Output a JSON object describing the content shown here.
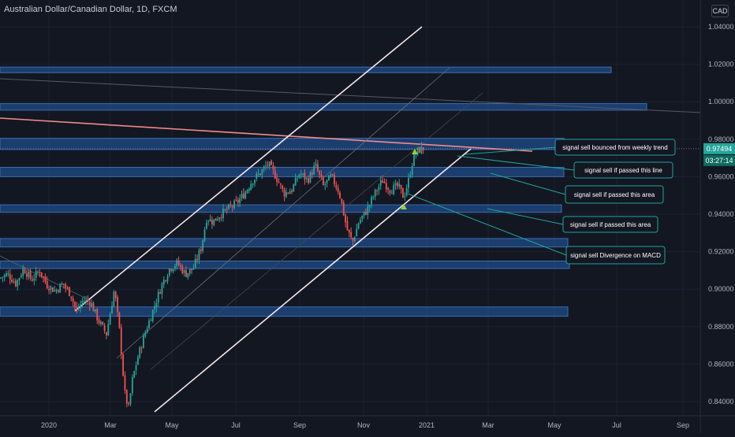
{
  "header": {
    "symbol_title": "Australian Dollar/Canadian Dollar, 1D, FXCM",
    "currency": "CAD"
  },
  "price_scale": {
    "ticks": [
      "1.04000",
      "1.02000",
      "1.00000",
      "0.98000",
      "0.96000",
      "0.94000",
      "0.92000",
      "0.90000",
      "0.88000",
      "0.86000",
      "0.84000"
    ],
    "last_price": "0.97494",
    "countdown": "03:27:14"
  },
  "chart_data": {
    "type": "candlestick",
    "x_ticks": [
      "2020",
      "Mar",
      "May",
      "Jul",
      "Sep",
      "Nov",
      "2021",
      "Mar",
      "May",
      "Jul",
      "Sep"
    ],
    "ylim": [
      0.834,
      1.046
    ],
    "close_path": [
      [
        0,
        0.906
      ],
      [
        10,
        0.908
      ],
      [
        20,
        0.903
      ],
      [
        30,
        0.911
      ],
      [
        40,
        0.905
      ],
      [
        50,
        0.91
      ],
      [
        60,
        0.902
      ],
      [
        70,
        0.899
      ],
      [
        80,
        0.903
      ],
      [
        90,
        0.897
      ],
      [
        97,
        0.888
      ],
      [
        105,
        0.894
      ],
      [
        115,
        0.893
      ],
      [
        125,
        0.883
      ],
      [
        135,
        0.876
      ],
      [
        145,
        0.9
      ],
      [
        152,
        0.876
      ],
      [
        158,
        0.845
      ],
      [
        163,
        0.836
      ],
      [
        168,
        0.852
      ],
      [
        175,
        0.864
      ],
      [
        185,
        0.878
      ],
      [
        195,
        0.89
      ],
      [
        205,
        0.902
      ],
      [
        215,
        0.911
      ],
      [
        225,
        0.914
      ],
      [
        235,
        0.908
      ],
      [
        245,
        0.911
      ],
      [
        255,
        0.922
      ],
      [
        262,
        0.938
      ],
      [
        270,
        0.936
      ],
      [
        280,
        0.94
      ],
      [
        290,
        0.943
      ],
      [
        300,
        0.946
      ],
      [
        310,
        0.951
      ],
      [
        320,
        0.958
      ],
      [
        330,
        0.962
      ],
      [
        340,
        0.967
      ],
      [
        350,
        0.96
      ],
      [
        360,
        0.951
      ],
      [
        370,
        0.953
      ],
      [
        380,
        0.962
      ],
      [
        390,
        0.958
      ],
      [
        400,
        0.966
      ],
      [
        410,
        0.955
      ],
      [
        420,
        0.96
      ],
      [
        430,
        0.952
      ],
      [
        440,
        0.932
      ],
      [
        447,
        0.925
      ],
      [
        455,
        0.936
      ],
      [
        465,
        0.942
      ],
      [
        475,
        0.951
      ],
      [
        485,
        0.958
      ],
      [
        495,
        0.953
      ],
      [
        505,
        0.955
      ],
      [
        512,
        0.949
      ],
      [
        518,
        0.958
      ],
      [
        524,
        0.97
      ],
      [
        530,
        0.974
      ],
      [
        537,
        0.975
      ]
    ],
    "horizontal_zones": [
      {
        "low": 1.0155,
        "high": 1.0185
      },
      {
        "low": 0.9955,
        "high": 0.999
      },
      {
        "low": 0.9745,
        "high": 0.9805
      },
      {
        "low": 0.96,
        "high": 0.965
      },
      {
        "low": 0.941,
        "high": 0.945
      },
      {
        "low": 0.9225,
        "high": 0.927
      },
      {
        "low": 0.911,
        "high": 0.915
      },
      {
        "low": 0.8855,
        "high": 0.8905
      }
    ],
    "annotations": [
      "signal sell bounced from weekly trend",
      "signal sell if passed this line",
      "signal sell if passed this area",
      "signal sell if passed this area",
      "signal sell Divergence on MACD"
    ],
    "colors": {
      "up": "#26a69a",
      "down": "#ef5350",
      "zone": "#1e4d8c",
      "channel": "#f4e6ea",
      "trend": "#f28b8b",
      "annotation_border": "#1fa39b",
      "last_price": "#26a69a"
    }
  }
}
